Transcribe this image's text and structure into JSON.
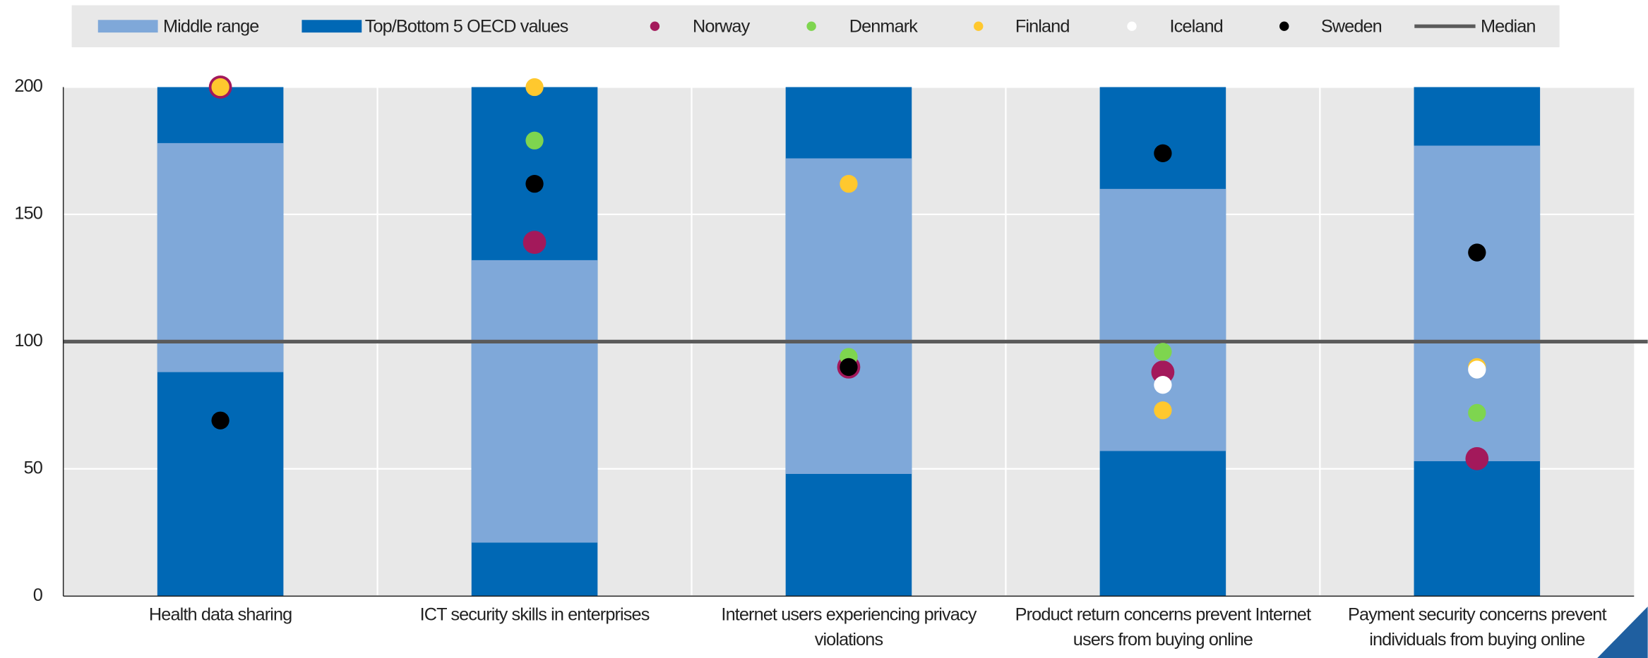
{
  "chart_data": {
    "type": "range_dot",
    "categories": [
      "Health data sharing",
      "ICT security skills in enterprises",
      "Internet users experiencing privacy violations",
      "Product return concerns prevent Internet users from buying online",
      "Payment security concerns prevent individuals from buying online"
    ],
    "ranges": [
      {
        "name": "Middle range",
        "color": "#7fa8d9",
        "low": [
          88,
          21,
          48,
          57,
          53
        ],
        "high": [
          178,
          132,
          172,
          160,
          177
        ]
      },
      {
        "name": "Top/Bottom 5 OECD values",
        "color": "#0068b5",
        "values": [
          200,
          200,
          200,
          200,
          200
        ]
      }
    ],
    "series": [
      {
        "name": "Norway",
        "color": "#a3195b",
        "values": [
          200,
          139,
          90,
          88,
          54
        ]
      },
      {
        "name": "Denmark",
        "color": "#7ed54f",
        "values": [
          null,
          179,
          94,
          96,
          72
        ]
      },
      {
        "name": "Finland",
        "color": "#ffc82e",
        "values": [
          200,
          200,
          162,
          73,
          90
        ]
      },
      {
        "name": "Iceland",
        "color": "#ffffff",
        "values": [
          null,
          null,
          null,
          83,
          89
        ]
      },
      {
        "name": "Sweden",
        "color": "#000000",
        "values": [
          69,
          162,
          90,
          174,
          135
        ]
      }
    ],
    "median": {
      "name": "Median",
      "color": "#5a5a5a",
      "value": 100
    },
    "ylim": [
      0,
      200
    ],
    "yticks": [
      0,
      50,
      100,
      150,
      200
    ],
    "grid": true
  }
}
